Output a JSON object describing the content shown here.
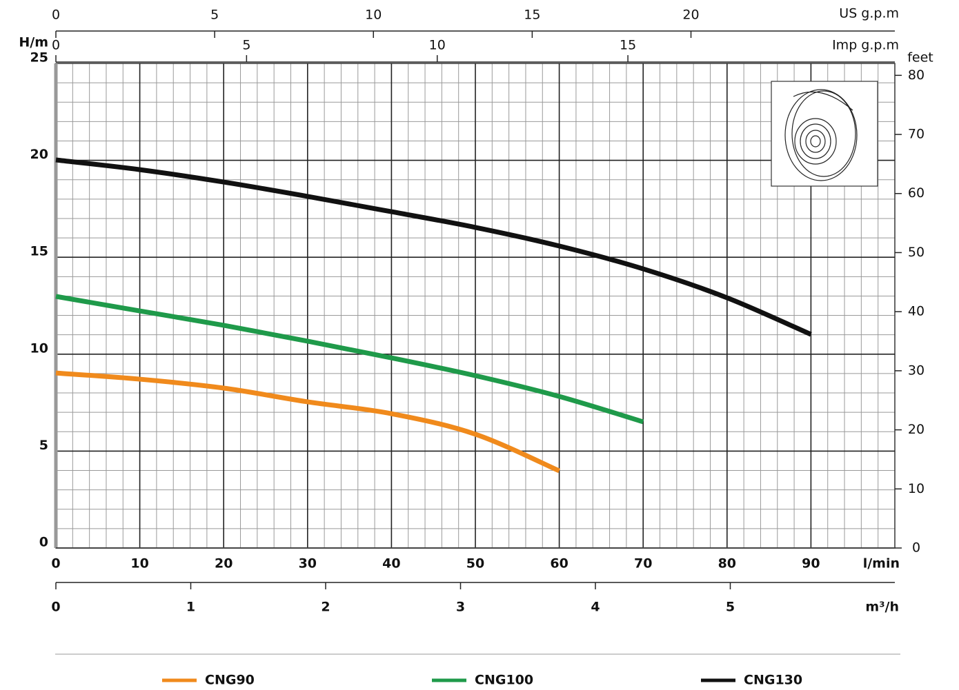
{
  "chart_data": {
    "type": "line",
    "y_label": "H/m",
    "y2_label": "feet",
    "x_label": "l/min",
    "x": [
      0,
      10,
      20,
      30,
      40,
      50,
      60,
      70,
      80,
      90
    ],
    "xlim": [
      0,
      100
    ],
    "xticks": [
      0,
      10,
      20,
      30,
      40,
      50,
      60,
      70,
      80,
      90
    ],
    "ylim": [
      0,
      25
    ],
    "yticks": [
      0,
      5,
      10,
      15,
      20,
      25
    ],
    "y2lim": [
      0,
      82.02
    ],
    "y2ticks": [
      0,
      10,
      20,
      30,
      40,
      50,
      60,
      70,
      80
    ],
    "us_axis": {
      "label": "US g.p.m",
      "lim": [
        0,
        26.42
      ],
      "ticks": [
        0,
        5,
        10,
        15,
        20
      ]
    },
    "imp_axis": {
      "label": "Imp g.p.m",
      "lim": [
        0,
        22.0
      ],
      "ticks": [
        0,
        5,
        10,
        15
      ]
    },
    "m3h_axis": {
      "label": "m³/h",
      "lim": [
        0,
        6.22
      ],
      "ticks": [
        0,
        1,
        2,
        3,
        4,
        5
      ]
    },
    "grid": true,
    "legend": "bottom",
    "series": [
      {
        "name": "CNG90",
        "color": "#f08a1c",
        "values": [
          9.03,
          8.71,
          8.25,
          7.54,
          6.93,
          5.87,
          3.98,
          null,
          null,
          null
        ]
      },
      {
        "name": "CNG100",
        "color": "#1f9a4a",
        "values": [
          12.98,
          12.23,
          11.49,
          10.67,
          9.81,
          8.89,
          7.82,
          6.51,
          null,
          null
        ]
      },
      {
        "name": "CNG130",
        "color": "#111111",
        "values": [
          20.02,
          19.52,
          18.88,
          18.14,
          17.35,
          16.54,
          15.58,
          14.4,
          12.91,
          11.02
        ]
      }
    ]
  }
}
